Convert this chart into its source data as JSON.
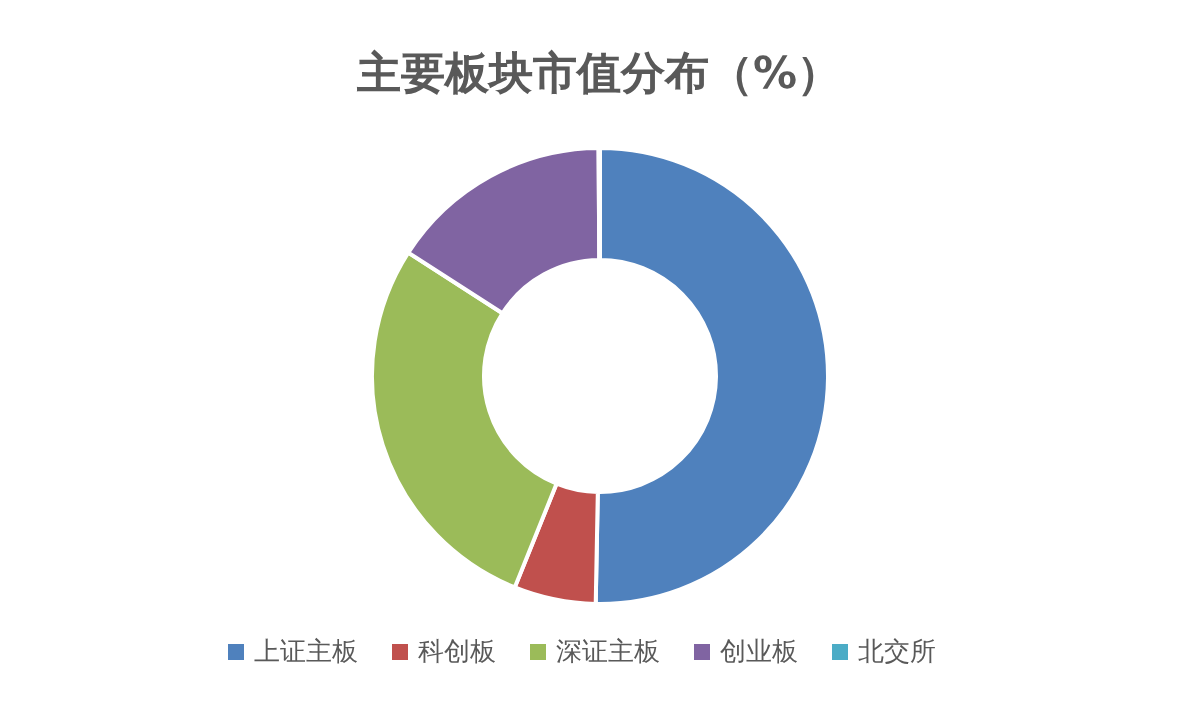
{
  "chart_data": {
    "type": "donut",
    "title": "主要板块市值分布（%）",
    "categories": [
      "上证主板",
      "科创板",
      "深证主板",
      "创业板",
      "北交所"
    ],
    "values": [
      50.3,
      5.8,
      28.0,
      15.8,
      0.1
    ],
    "colors": [
      "#4f81bd",
      "#c0504d",
      "#9bbb59",
      "#8064a2",
      "#4bacc6"
    ],
    "legend": "bottom"
  }
}
